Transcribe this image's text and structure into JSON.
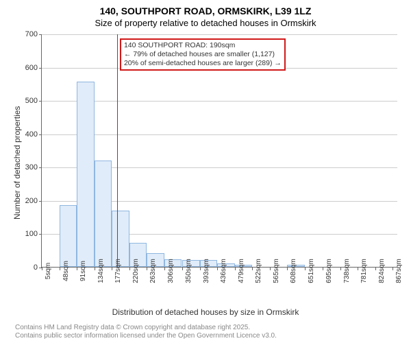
{
  "title": "140, SOUTHPORT ROAD, ORMSKIRK, L39 1LZ",
  "subtitle": "Size of property relative to detached houses in Ormskirk",
  "y_axis_title": "Number of detached properties",
  "x_axis_title": "Distribution of detached houses by size in Ormskirk",
  "ylim": [
    0,
    700
  ],
  "ytick_step": 100,
  "xlim": [
    5,
    880
  ],
  "x_tick_step": 43,
  "bar_bin_width": 43,
  "annotation": {
    "line1": "140 SOUTHPORT ROAD: 190sqm",
    "line2": "← 79% of detached houses are smaller (1,127)",
    "line3": "20% of semi-detached houses are larger (289) →"
  },
  "marker_x": 190,
  "bars": [
    {
      "x": 5,
      "count": 0
    },
    {
      "x": 48,
      "count": 185
    },
    {
      "x": 91,
      "count": 555
    },
    {
      "x": 134,
      "count": 320
    },
    {
      "x": 177,
      "count": 168
    },
    {
      "x": 220,
      "count": 72
    },
    {
      "x": 263,
      "count": 42
    },
    {
      "x": 306,
      "count": 23
    },
    {
      "x": 350,
      "count": 20
    },
    {
      "x": 393,
      "count": 20
    },
    {
      "x": 436,
      "count": 10
    },
    {
      "x": 479,
      "count": 6
    },
    {
      "x": 522,
      "count": 0
    },
    {
      "x": 565,
      "count": 0
    },
    {
      "x": 608,
      "count": 6
    },
    {
      "x": 651,
      "count": 0
    },
    {
      "x": 695,
      "count": 0
    },
    {
      "x": 738,
      "count": 0
    },
    {
      "x": 781,
      "count": 0
    },
    {
      "x": 824,
      "count": 0
    },
    {
      "x": 867,
      "count": 0
    }
  ],
  "x_tick_labels": [
    "5sqm",
    "48sqm",
    "91sqm",
    "134sqm",
    "177sqm",
    "220sqm",
    "263sqm",
    "306sqm",
    "350sqm",
    "393sqm",
    "436sqm",
    "479sqm",
    "522sqm",
    "565sqm",
    "608sqm",
    "651sqm",
    "695sqm",
    "738sqm",
    "781sqm",
    "824sqm",
    "867sqm"
  ],
  "colors": {
    "bar_fill": "#e0ecf9",
    "bar_border": "#8fb6e0",
    "marker": "#d01919",
    "grid": "#cccccc",
    "axis": "#666666",
    "text": "#333333",
    "background": "#ffffff"
  },
  "footer": {
    "line1": "Contains HM Land Registry data © Crown copyright and database right 2025.",
    "line2": "Contains public sector information licensed under the Open Government Licence v3.0."
  }
}
